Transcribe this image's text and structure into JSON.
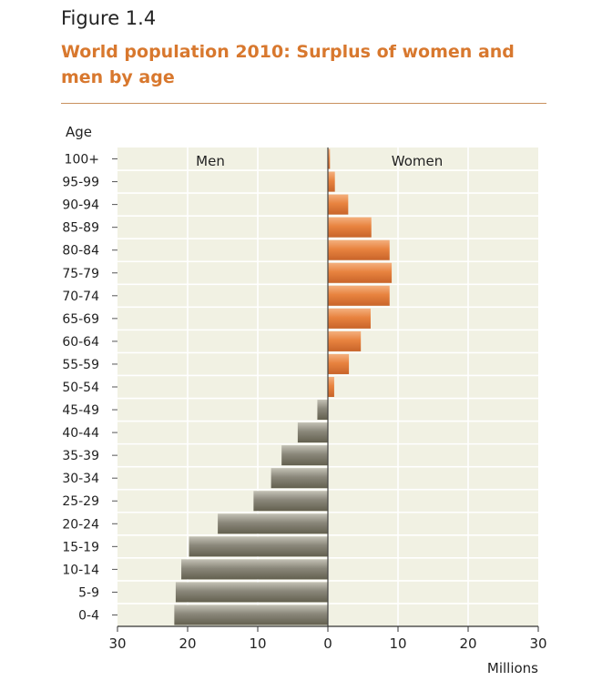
{
  "figure": {
    "label": "Figure 1.4",
    "title": "World population 2010: Surplus of women and men by age"
  },
  "chart_data": {
    "type": "bar",
    "orientation": "horizontal",
    "y_title": "Age",
    "x_title": "Millions",
    "side_labels": {
      "left": "Men",
      "right": "Women"
    },
    "xlim": [
      -30,
      30
    ],
    "x_ticks": [
      -30,
      -20,
      -10,
      0,
      10,
      20,
      30
    ],
    "x_tick_labels": [
      "30",
      "20",
      "10",
      "0",
      "10",
      "20",
      "30"
    ],
    "grid": true,
    "categories": [
      "100+",
      "95-99",
      "90-94",
      "85-89",
      "80-84",
      "75-79",
      "70-74",
      "65-69",
      "60-64",
      "55-59",
      "50-54",
      "45-49",
      "40-44",
      "35-39",
      "30-34",
      "25-29",
      "20-24",
      "15-19",
      "10-14",
      "5-9",
      "0-4"
    ],
    "values": [
      0.3,
      1.0,
      2.9,
      6.2,
      8.8,
      9.1,
      8.8,
      6.1,
      4.7,
      3.0,
      0.9,
      -1.5,
      -4.3,
      -6.6,
      -8.1,
      -10.6,
      -15.7,
      -19.8,
      -20.9,
      -21.7,
      -21.9
    ],
    "colors": {
      "women": "#e8833f",
      "men": "#8a877a",
      "plot_bg": "#f1f1e3",
      "grid": "#ffffff"
    }
  }
}
